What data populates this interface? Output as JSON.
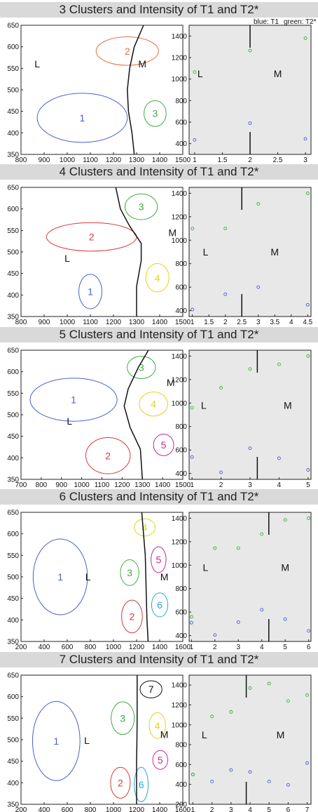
{
  "legend": {
    "t1": "blue: T1",
    "t2": "green: T2*"
  },
  "colors": {
    "blue": "#4a5fd0",
    "red": "#d93a3a",
    "green": "#3fae3f",
    "yellow": "#e6d21a",
    "magenta": "#c8289a",
    "cyan": "#23a8d8",
    "black": "#111111",
    "orange": "#e87040"
  },
  "panels": [
    {
      "title": "3 Clusters and Intensity of T1 and T2*",
      "left": {
        "xlim": [
          800,
          1500
        ],
        "xticks": [
          800,
          900,
          1000,
          1100,
          1200,
          1300,
          1400,
          1500
        ],
        "ylim": [
          350,
          650
        ],
        "yticks": [
          350,
          400,
          450,
          500,
          550,
          600,
          650
        ],
        "regions": [
          {
            "text": "L",
            "x": 870,
            "y": 560
          },
          {
            "text": "M",
            "x": 1325,
            "y": 560
          }
        ],
        "clusters": [
          {
            "label": "1",
            "x": 1065,
            "y": 435,
            "rx": 195,
            "ry": 57,
            "color": "blue"
          },
          {
            "label": "2",
            "x": 1260,
            "y": 590,
            "rx": 135,
            "ry": 33,
            "color": "orange"
          },
          {
            "label": "3",
            "x": 1380,
            "y": 445,
            "rx": 48,
            "ry": 30,
            "color": "green"
          }
        ],
        "boundary": [
          [
            1330,
            650
          ],
          [
            1290,
            600
          ],
          [
            1270,
            550
          ],
          [
            1260,
            500
          ],
          [
            1265,
            450
          ],
          [
            1280,
            400
          ],
          [
            1290,
            350
          ]
        ]
      },
      "right": {
        "xlim": [
          0.9,
          3.1
        ],
        "xticks": [
          "1",
          "1.5",
          "2",
          "2.5",
          "3"
        ],
        "xtickvals": [
          1,
          1.5,
          2,
          2.5,
          3
        ],
        "ylim": [
          300,
          1500
        ],
        "yticks": [
          400,
          600,
          800,
          1000,
          1200,
          1400
        ],
        "t1": [
          [
            1,
            435
          ],
          [
            2,
            590
          ],
          [
            3,
            445
          ]
        ],
        "t2": [
          [
            1,
            1065
          ],
          [
            2,
            1265
          ],
          [
            3,
            1380
          ]
        ],
        "labelL": [
          1.1,
          1050
        ],
        "labelM": [
          2.5,
          1050
        ],
        "divider": 2,
        "showLegend": true
      }
    },
    {
      "title": "4 Clusters and Intensity of T1 and T2*",
      "left": {
        "xlim": [
          800,
          1500
        ],
        "xticks": [
          800,
          900,
          1000,
          1100,
          1200,
          1300,
          1400,
          1500
        ],
        "ylim": [
          350,
          650
        ],
        "yticks": [
          350,
          400,
          450,
          500,
          550,
          600,
          650
        ],
        "regions": [
          {
            "text": "L",
            "x": 1000,
            "y": 485
          },
          {
            "text": "M",
            "x": 1455,
            "y": 545
          }
        ],
        "clusters": [
          {
            "label": "1",
            "x": 1100,
            "y": 408,
            "rx": 50,
            "ry": 40,
            "color": "blue"
          },
          {
            "label": "2",
            "x": 1105,
            "y": 535,
            "rx": 195,
            "ry": 33,
            "color": "red"
          },
          {
            "label": "3",
            "x": 1320,
            "y": 605,
            "rx": 70,
            "ry": 30,
            "color": "green"
          },
          {
            "label": "4",
            "x": 1390,
            "y": 440,
            "rx": 50,
            "ry": 33,
            "color": "yellow"
          }
        ],
        "boundary": [
          [
            1210,
            650
          ],
          [
            1230,
            600
          ],
          [
            1270,
            560
          ],
          [
            1320,
            520
          ],
          [
            1320,
            480
          ],
          [
            1300,
            420
          ],
          [
            1300,
            350
          ]
        ]
      },
      "right": {
        "xlim": [
          0.9,
          4.6
        ],
        "xticks": [
          "1",
          "1.5",
          "2",
          "2.5",
          "3",
          "3.5",
          "4",
          "4.5"
        ],
        "xtickvals": [
          1,
          1.5,
          2,
          2.5,
          3,
          3.5,
          4,
          4.5
        ],
        "ylim": [
          350,
          1450
        ],
        "yticks": [
          400,
          600,
          800,
          1000,
          1200,
          1400
        ],
        "t1": [
          [
            1,
            410
          ],
          [
            2,
            540
          ],
          [
            3,
            600
          ],
          [
            4.5,
            450
          ]
        ],
        "t2": [
          [
            1,
            1100
          ],
          [
            2,
            1100
          ],
          [
            3,
            1310
          ],
          [
            4.5,
            1400
          ]
        ],
        "labelL": [
          1.4,
          900
        ],
        "labelM": [
          3.5,
          900
        ],
        "divider": 2.5,
        "showLegend": false
      }
    },
    {
      "title": "5 Clusters and Intensity of T1 and T2*",
      "left": {
        "xlim": [
          700,
          1500
        ],
        "xticks": [
          700,
          800,
          900,
          1000,
          1100,
          1200,
          1300,
          1400,
          1500
        ],
        "ylim": [
          350,
          650
        ],
        "yticks": [
          350,
          400,
          450,
          500,
          550,
          600,
          650
        ],
        "regions": [
          {
            "text": "L",
            "x": 940,
            "y": 485
          },
          {
            "text": "M",
            "x": 1440,
            "y": 575
          }
        ],
        "clusters": [
          {
            "label": "1",
            "x": 960,
            "y": 535,
            "rx": 215,
            "ry": 50,
            "color": "blue"
          },
          {
            "label": "2",
            "x": 1130,
            "y": 405,
            "rx": 110,
            "ry": 42,
            "color": "red"
          },
          {
            "label": "3",
            "x": 1295,
            "y": 610,
            "rx": 70,
            "ry": 26,
            "color": "green"
          },
          {
            "label": "4",
            "x": 1355,
            "y": 525,
            "rx": 70,
            "ry": 28,
            "color": "yellow"
          },
          {
            "label": "5",
            "x": 1405,
            "y": 430,
            "rx": 50,
            "ry": 25,
            "color": "magenta"
          }
        ],
        "boundary": [
          [
            1330,
            650
          ],
          [
            1280,
            610
          ],
          [
            1230,
            560
          ],
          [
            1210,
            520
          ],
          [
            1240,
            470
          ],
          [
            1290,
            420
          ],
          [
            1300,
            350
          ]
        ]
      },
      "right": {
        "xlim": [
          0.9,
          5.1
        ],
        "xticks": [
          "1",
          "2",
          "3",
          "4",
          "5"
        ],
        "xtickvals": [
          1,
          2,
          3,
          4,
          5
        ],
        "ylim": [
          350,
          1450
        ],
        "yticks": [
          400,
          600,
          800,
          1000,
          1200,
          1400
        ],
        "t1": [
          [
            1,
            540
          ],
          [
            2,
            410
          ],
          [
            3,
            615
          ],
          [
            4,
            530
          ],
          [
            5,
            430
          ]
        ],
        "t2": [
          [
            1,
            960
          ],
          [
            2,
            1130
          ],
          [
            3,
            1290
          ],
          [
            4,
            1330
          ],
          [
            5,
            1400
          ]
        ],
        "labelL": [
          1.4,
          980
        ],
        "labelM": [
          4.3,
          980
        ],
        "divider": 3.25,
        "showLegend": false
      }
    },
    {
      "title": "6 Clusters and Intensity of T1 and T2*",
      "left": {
        "xlim": [
          200,
          1600
        ],
        "xticks": [
          200,
          400,
          600,
          800,
          1000,
          1200,
          1400,
          1600
        ],
        "ylim": [
          350,
          650
        ],
        "yticks": [
          350,
          400,
          450,
          500,
          550,
          600,
          650
        ],
        "regions": [
          {
            "text": "L",
            "x": 780,
            "y": 500
          },
          {
            "text": "M",
            "x": 1440,
            "y": 500
          }
        ],
        "clusters": [
          {
            "label": "1",
            "x": 540,
            "y": 500,
            "rx": 235,
            "ry": 88,
            "color": "blue"
          },
          {
            "label": "2",
            "x": 1160,
            "y": 408,
            "rx": 90,
            "ry": 38,
            "color": "red"
          },
          {
            "label": "3",
            "x": 1140,
            "y": 510,
            "rx": 80,
            "ry": 30,
            "color": "green"
          },
          {
            "label": "4",
            "x": 1270,
            "y": 615,
            "rx": 90,
            "ry": 20,
            "color": "yellow"
          },
          {
            "label": "5",
            "x": 1390,
            "y": 540,
            "rx": 65,
            "ry": 30,
            "color": "magenta"
          },
          {
            "label": "6",
            "x": 1400,
            "y": 435,
            "rx": 70,
            "ry": 28,
            "color": "cyan"
          }
        ],
        "boundary": [
          [
            1245,
            650
          ],
          [
            1260,
            600
          ],
          [
            1275,
            550
          ],
          [
            1280,
            500
          ],
          [
            1285,
            450
          ],
          [
            1290,
            400
          ],
          [
            1300,
            350
          ]
        ]
      },
      "right": {
        "xlim": [
          0.9,
          6.1
        ],
        "xticks": [
          "1",
          "2",
          "3",
          "4",
          "5",
          "6"
        ],
        "xtickvals": [
          1,
          2,
          3,
          4,
          5,
          6
        ],
        "ylim": [
          350,
          1450
        ],
        "yticks": [
          400,
          600,
          800,
          1000,
          1200,
          1400
        ],
        "t1": [
          [
            1,
            510
          ],
          [
            2,
            405
          ],
          [
            3,
            515
          ],
          [
            4,
            620
          ],
          [
            5,
            540
          ],
          [
            6,
            440
          ]
        ],
        "t2": [
          [
            1,
            560
          ],
          [
            2,
            1145
          ],
          [
            3,
            1145
          ],
          [
            4,
            1265
          ],
          [
            5,
            1385
          ],
          [
            6,
            1400
          ]
        ],
        "labelL": [
          1.6,
          980
        ],
        "labelM": [
          5.0,
          980
        ],
        "divider": 4.3,
        "showLegend": false
      }
    },
    {
      "title": "7 Clusters and Intensity of T1 and T2*",
      "left": {
        "xlim": [
          200,
          1600
        ],
        "xticks": [
          200,
          400,
          600,
          800,
          1000,
          1200,
          1400,
          1600
        ],
        "ylim": [
          350,
          650
        ],
        "yticks": [
          350,
          400,
          450,
          500,
          550,
          600,
          650
        ],
        "regions": [
          {
            "text": "L",
            "x": 770,
            "y": 498
          },
          {
            "text": "M",
            "x": 1440,
            "y": 512
          }
        ],
        "clusters": [
          {
            "label": "1",
            "x": 505,
            "y": 497,
            "rx": 205,
            "ry": 92,
            "color": "blue"
          },
          {
            "label": "2",
            "x": 1060,
            "y": 400,
            "rx": 85,
            "ry": 36,
            "color": "red"
          },
          {
            "label": "3",
            "x": 1080,
            "y": 550,
            "rx": 100,
            "ry": 38,
            "color": "green"
          },
          {
            "label": "4",
            "x": 1380,
            "y": 533,
            "rx": 70,
            "ry": 30,
            "color": "yellow"
          },
          {
            "label": "5",
            "x": 1405,
            "y": 453,
            "rx": 65,
            "ry": 22,
            "color": "magenta"
          },
          {
            "label": "6",
            "x": 1240,
            "y": 396,
            "rx": 60,
            "ry": 40,
            "color": "cyan"
          },
          {
            "label": "7",
            "x": 1325,
            "y": 617,
            "rx": 95,
            "ry": 20,
            "color": "black"
          }
        ],
        "boundary": [
          [
            1205,
            650
          ],
          [
            1205,
            600
          ],
          [
            1205,
            550
          ],
          [
            1203,
            500
          ],
          [
            1200,
            450
          ],
          [
            1200,
            400
          ],
          [
            1200,
            350
          ]
        ]
      },
      "right": {
        "xlim": [
          0.8,
          7.2
        ],
        "xticks": [
          "1",
          "2",
          "3",
          "4",
          "5",
          "6",
          "7"
        ],
        "xtickvals": [
          1,
          2,
          3,
          4,
          5,
          6,
          7
        ],
        "ylim": [
          200,
          1500
        ],
        "yticks": [
          200,
          400,
          600,
          800,
          1000,
          1200,
          1400
        ],
        "t1": [
          [
            1,
            500
          ],
          [
            2,
            430
          ],
          [
            3,
            545
          ],
          [
            4,
            525
          ],
          [
            5,
            430
          ],
          [
            6,
            395
          ],
          [
            7,
            615
          ]
        ],
        "t2": [
          [
            1,
            500
          ],
          [
            2,
            1085
          ],
          [
            3,
            1130
          ],
          [
            4,
            1370
          ],
          [
            5,
            1415
          ],
          [
            6,
            1240
          ],
          [
            7,
            1300
          ]
        ],
        "labelL": [
          1.6,
          900
        ],
        "labelM": [
          5.6,
          900
        ],
        "divider": 3.8,
        "showLegend": false
      }
    }
  ]
}
